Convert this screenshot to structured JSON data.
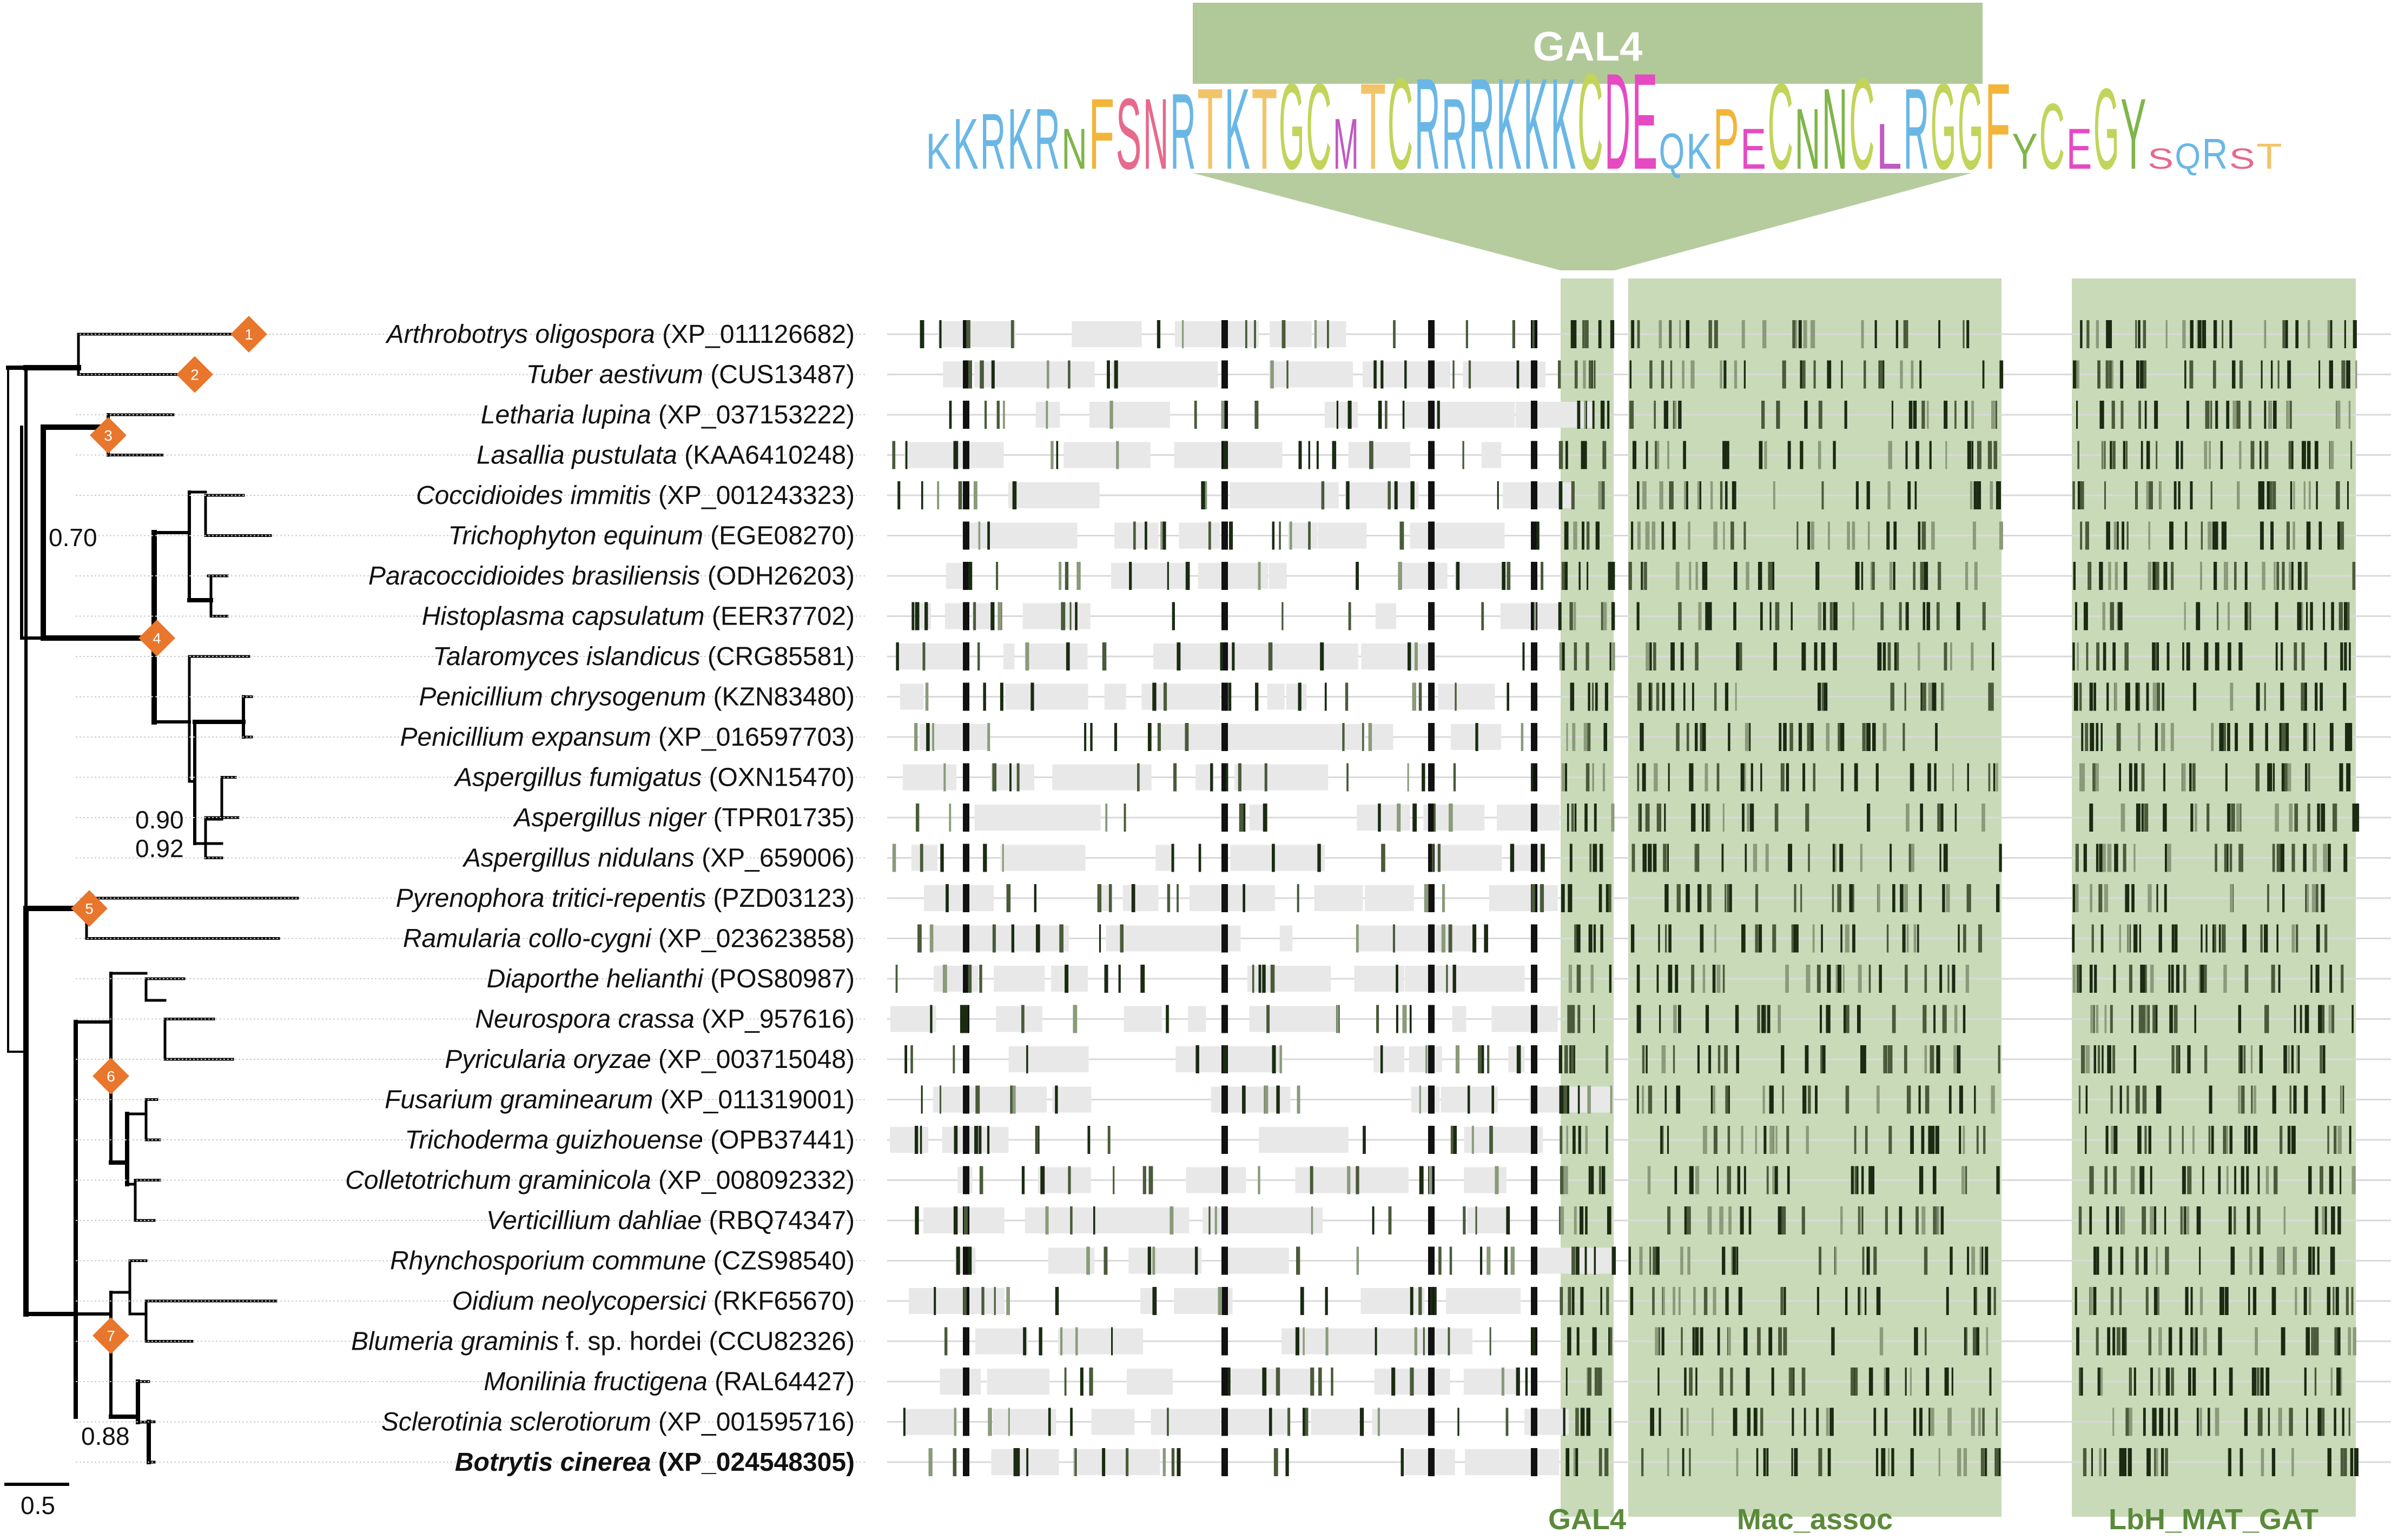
{
  "figure": {
    "gal4_banner": "GAL4",
    "motif_logo": [
      {
        "r": "K",
        "c": "#6ab7e6",
        "s": 0.35
      },
      {
        "r": "K",
        "c": "#6ab7e6",
        "s": 0.5
      },
      {
        "r": "R",
        "c": "#6ab7e6",
        "s": 0.55
      },
      {
        "r": "K",
        "c": "#6ab7e6",
        "s": 0.6
      },
      {
        "r": "R",
        "c": "#6ab7e6",
        "s": 0.6
      },
      {
        "r": "N",
        "c": "#7fb54a",
        "s": 0.4
      },
      {
        "r": "F",
        "c": "#f2b53a",
        "s": 0.7
      },
      {
        "r": "S",
        "c": "#e66a8c",
        "s": 0.7
      },
      {
        "r": "N",
        "c": "#e66a8c",
        "s": 0.7
      },
      {
        "r": "R",
        "c": "#6ab7e6",
        "s": 0.75
      },
      {
        "r": "T",
        "c": "#f2c46a",
        "s": 0.8
      },
      {
        "r": "K",
        "c": "#6ab7e6",
        "s": 0.8
      },
      {
        "r": "T",
        "c": "#f2c46a",
        "s": 0.8
      },
      {
        "r": "G",
        "c": "#c2d45a",
        "s": 0.85
      },
      {
        "r": "C",
        "c": "#c2d45a",
        "s": 0.85
      },
      {
        "r": "M",
        "c": "#c05ac2",
        "s": 0.5
      },
      {
        "r": "T",
        "c": "#f2c46a",
        "s": 0.85
      },
      {
        "r": "C",
        "c": "#c2d45a",
        "s": 0.9
      },
      {
        "r": "R",
        "c": "#6ab7e6",
        "s": 0.9
      },
      {
        "r": "R",
        "c": "#6ab7e6",
        "s": 0.7
      },
      {
        "r": "R",
        "c": "#6ab7e6",
        "s": 0.9
      },
      {
        "r": "K",
        "c": "#6ab7e6",
        "s": 0.9
      },
      {
        "r": "K",
        "c": "#6ab7e6",
        "s": 0.9
      },
      {
        "r": "K",
        "c": "#6ab7e6",
        "s": 0.9
      },
      {
        "r": "C",
        "c": "#c2d45a",
        "s": 0.95
      },
      {
        "r": "D",
        "c": "#e64ac2",
        "s": 0.95
      },
      {
        "r": "E",
        "c": "#e64ac2",
        "s": 0.95
      },
      {
        "r": "Q",
        "c": "#6ab7e6",
        "s": 0.35
      },
      {
        "r": "K",
        "c": "#6ab7e6",
        "s": 0.35
      },
      {
        "r": "P",
        "c": "#f2b53a",
        "s": 0.6
      },
      {
        "r": "E",
        "c": "#e64ac2",
        "s": 0.4
      },
      {
        "r": "C",
        "c": "#c2d45a",
        "s": 0.85
      },
      {
        "r": "N",
        "c": "#7fb54a",
        "s": 0.6
      },
      {
        "r": "N",
        "c": "#7fb54a",
        "s": 0.8
      },
      {
        "r": "C",
        "c": "#c2d45a",
        "s": 0.9
      },
      {
        "r": "L",
        "c": "#c05ac2",
        "s": 0.45
      },
      {
        "r": "R",
        "c": "#6ab7e6",
        "s": 0.8
      },
      {
        "r": "G",
        "c": "#c2d45a",
        "s": 0.85
      },
      {
        "r": "G",
        "c": "#c2d45a",
        "s": 0.85
      },
      {
        "r": "F",
        "c": "#f2b53a",
        "s": 0.85
      },
      {
        "r": "Y",
        "c": "#7fb54a",
        "s": 0.35
      },
      {
        "r": "C",
        "c": "#c2d45a",
        "s": 0.65
      },
      {
        "r": "E",
        "c": "#e64ac2",
        "s": 0.4
      },
      {
        "r": "G",
        "c": "#c2d45a",
        "s": 0.8
      },
      {
        "r": "Y",
        "c": "#7fb54a",
        "s": 0.7
      },
      {
        "r": "S",
        "c": "#e66a8c",
        "s": 0.2
      },
      {
        "r": "Q",
        "c": "#6ab7e6",
        "s": 0.25
      },
      {
        "r": "R",
        "c": "#6ab7e6",
        "s": 0.3
      },
      {
        "r": "S",
        "c": "#e66a8c",
        "s": 0.2
      },
      {
        "r": "T",
        "c": "#f2c46a",
        "s": 0.25
      }
    ],
    "taxa": [
      {
        "name": "Arthrobotrys oligospora",
        "acc": "(XP_011126682)",
        "node": "1"
      },
      {
        "name": "Tuber aestivum",
        "acc": "(CUS13487)",
        "node": "2"
      },
      {
        "name": "Letharia lupina",
        "acc": "(XP_037153222)",
        "node": ""
      },
      {
        "name": "Lasallia pustulata",
        "acc": "(KAA6410248)",
        "node": ""
      },
      {
        "name": "Coccidioides immitis",
        "acc": "(XP_001243323)",
        "node": ""
      },
      {
        "name": "Trichophyton equinum",
        "acc": "(EGE08270)",
        "node": ""
      },
      {
        "name": "Paracoccidioides brasiliensis",
        "acc": "(ODH26203)",
        "node": ""
      },
      {
        "name": "Histoplasma capsulatum",
        "acc": "(EER37702)",
        "node": ""
      },
      {
        "name": "Talaromyces islandicus",
        "acc": "(CRG85581)",
        "node": ""
      },
      {
        "name": "Penicillium chrysogenum",
        "acc": "(KZN83480)",
        "node": ""
      },
      {
        "name": "Penicillium expansum",
        "acc": "(XP_016597703)",
        "node": ""
      },
      {
        "name": "Aspergillus fumigatus",
        "acc": "(OXN15470)",
        "node": ""
      },
      {
        "name": "Aspergillus niger",
        "acc": "(TPR01735)",
        "node": ""
      },
      {
        "name": "Aspergillus nidulans",
        "acc": "(XP_659006)",
        "node": ""
      },
      {
        "name": "Pyrenophora tritici-repentis",
        "acc": "(PZD03123)",
        "node": ""
      },
      {
        "name": "Ramularia collo-cygni",
        "acc": "(XP_023623858)",
        "node": ""
      },
      {
        "name": "Diaporthe helianthi",
        "acc": "(POS80987)",
        "node": ""
      },
      {
        "name": "Neurospora crassa",
        "acc": "(XP_957616)",
        "node": ""
      },
      {
        "name": "Pyricularia oryzae",
        "acc": "(XP_003715048)",
        "node": ""
      },
      {
        "name": "Fusarium graminearum",
        "acc": "(XP_011319001)",
        "node": ""
      },
      {
        "name": "Trichoderma guizhouense",
        "acc": "(OPB37441)",
        "node": ""
      },
      {
        "name": "Colletotrichum graminicola",
        "acc": "(XP_008092332)",
        "node": ""
      },
      {
        "name": "Verticillium dahliae",
        "acc": "(RBQ74347)",
        "node": ""
      },
      {
        "name": "Rhynchosporium commune",
        "acc": "(CZS98540)",
        "node": ""
      },
      {
        "name": "Oidium neolycopersici",
        "acc": "(RKF65670)",
        "node": ""
      },
      {
        "name": "Blumeria graminis",
        "acc": "f. sp. hordei (CCU82326)",
        "node": ""
      },
      {
        "name": "Monilinia fructigena",
        "acc": "(RAL64427)",
        "node": ""
      },
      {
        "name": "Sclerotinia sclerotiorum",
        "acc": "(XP_001595716)",
        "node": ""
      },
      {
        "name": "Botrytis cinerea",
        "acc": "(XP_024548305)",
        "node": "",
        "bold": true
      }
    ],
    "node_markers": [
      "1",
      "2",
      "3",
      "4",
      "5",
      "6",
      "7"
    ],
    "support_values": [
      "0.70",
      "0.90",
      "0.92",
      "0.88"
    ],
    "scale_label": "0.5",
    "domains": [
      "GAL4",
      "Mac_assoc",
      "LbH_MAT_GAT"
    ],
    "colors": {
      "domain_fill": "#9dbb7f",
      "node_marker": "#e8762c",
      "domain_label": "#5a8a3a",
      "align_light": "#e6e6e6",
      "align_dark": "#1a2b12"
    }
  }
}
